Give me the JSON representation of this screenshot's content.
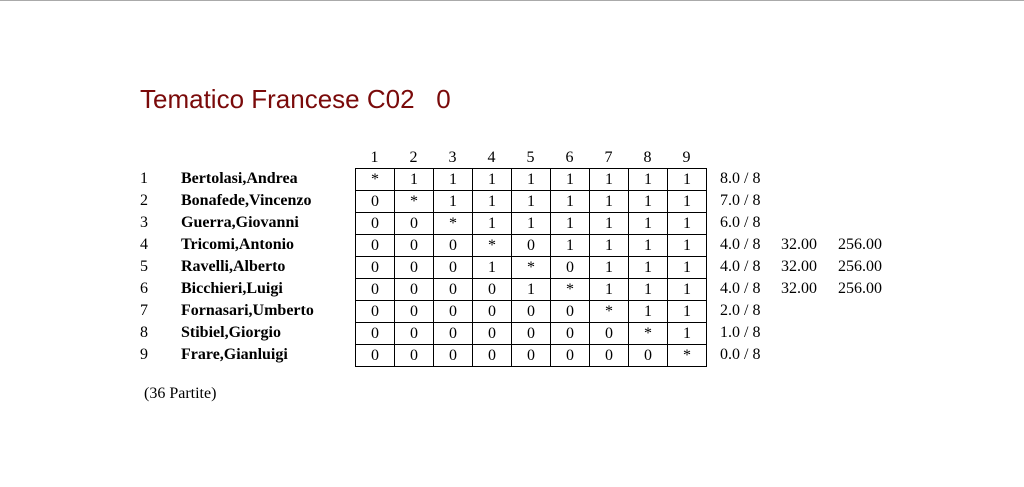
{
  "title": "Tematico Francese C02   0",
  "column_headers": [
    "1",
    "2",
    "3",
    "4",
    "5",
    "6",
    "7",
    "8",
    "9"
  ],
  "players": [
    {
      "num": "1",
      "name": "Bertolasi,Andrea",
      "results": [
        "*",
        "1",
        "1",
        "1",
        "1",
        "1",
        "1",
        "1",
        "1"
      ],
      "score": "8.0 / 8",
      "tb1": "",
      "tb2": ""
    },
    {
      "num": "2",
      "name": "Bonafede,Vincenzo",
      "results": [
        "0",
        "*",
        "1",
        "1",
        "1",
        "1",
        "1",
        "1",
        "1"
      ],
      "score": "7.0 / 8",
      "tb1": "",
      "tb2": ""
    },
    {
      "num": "3",
      "name": "Guerra,Giovanni",
      "results": [
        "0",
        "0",
        "*",
        "1",
        "1",
        "1",
        "1",
        "1",
        "1"
      ],
      "score": "6.0 / 8",
      "tb1": "",
      "tb2": ""
    },
    {
      "num": "4",
      "name": "Tricomi,Antonio",
      "results": [
        "0",
        "0",
        "0",
        "*",
        "0",
        "1",
        "1",
        "1",
        "1"
      ],
      "score": "4.0 / 8",
      "tb1": "32.00",
      "tb2": "256.00"
    },
    {
      "num": "5",
      "name": "Ravelli,Alberto",
      "results": [
        "0",
        "0",
        "0",
        "1",
        "*",
        "0",
        "1",
        "1",
        "1"
      ],
      "score": "4.0 / 8",
      "tb1": "32.00",
      "tb2": "256.00"
    },
    {
      "num": "6",
      "name": "Bicchieri,Luigi",
      "results": [
        "0",
        "0",
        "0",
        "0",
        "1",
        "*",
        "1",
        "1",
        "1"
      ],
      "score": "4.0 / 8",
      "tb1": "32.00",
      "tb2": "256.00"
    },
    {
      "num": "7",
      "name": "Fornasari,Umberto",
      "results": [
        "0",
        "0",
        "0",
        "0",
        "0",
        "0",
        "*",
        "1",
        "1"
      ],
      "score": "2.0 / 8",
      "tb1": "",
      "tb2": ""
    },
    {
      "num": "8",
      "name": "Stibiel,Giorgio",
      "results": [
        "0",
        "0",
        "0",
        "0",
        "0",
        "0",
        "0",
        "*",
        "1"
      ],
      "score": "1.0 / 8",
      "tb1": "",
      "tb2": ""
    },
    {
      "num": "9",
      "name": "Frare,Gianluigi",
      "results": [
        "0",
        "0",
        "0",
        "0",
        "0",
        "0",
        "0",
        "0",
        "*"
      ],
      "score": "0.0 / 8",
      "tb1": "",
      "tb2": ""
    }
  ],
  "games_count": "(36 Partite)"
}
